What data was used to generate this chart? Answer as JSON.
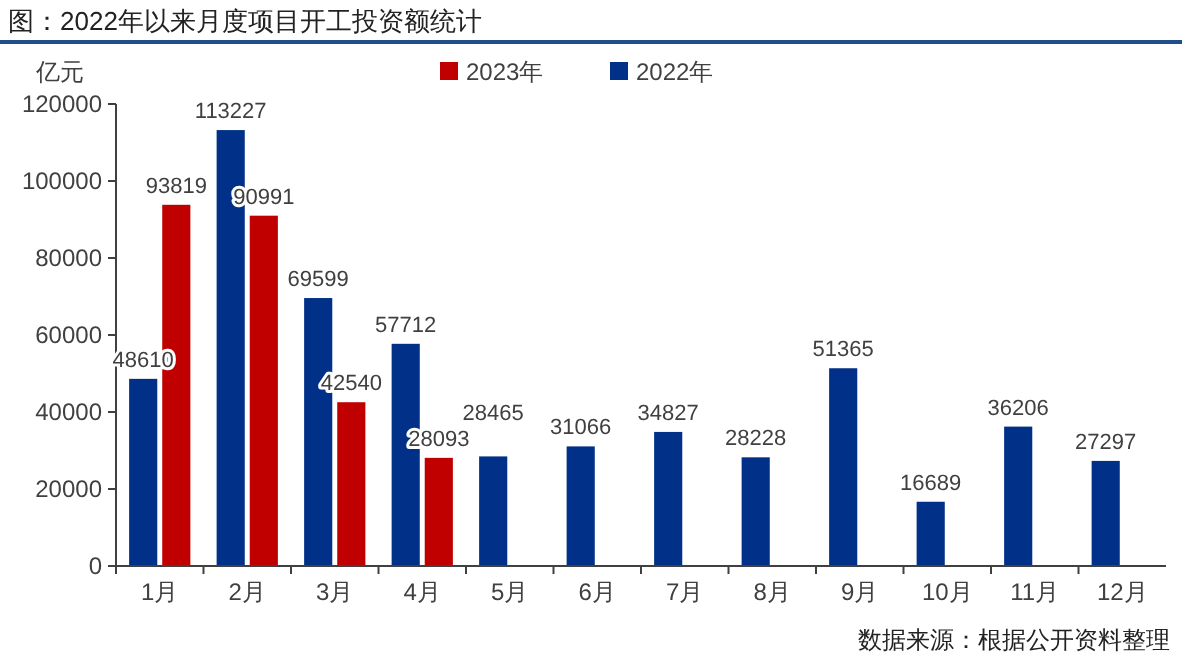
{
  "chart_data": {
    "type": "bar",
    "title": "图：2022年以来月度项目开工投资额统计",
    "ylabel": "亿元",
    "categories": [
      "1月",
      "2月",
      "3月",
      "4月",
      "5月",
      "6月",
      "7月",
      "8月",
      "9月",
      "10月",
      "11月",
      "12月"
    ],
    "series": [
      {
        "name": "2022年",
        "color": "#003087",
        "values": [
          48610,
          113227,
          69599,
          57712,
          28465,
          31066,
          34827,
          28228,
          51365,
          16689,
          36206,
          27297
        ]
      },
      {
        "name": "2023年",
        "color": "#c00000",
        "values": [
          93819,
          90991,
          42540,
          28093,
          null,
          null,
          null,
          null,
          null,
          null,
          null,
          null
        ]
      }
    ],
    "ylim": [
      0,
      120000
    ],
    "yticks": [
      0,
      20000,
      40000,
      60000,
      80000,
      100000,
      120000
    ],
    "grid": false,
    "legend": "top",
    "data_labels": true,
    "annotations": [
      "数据来源：根据公开资料整理"
    ]
  }
}
